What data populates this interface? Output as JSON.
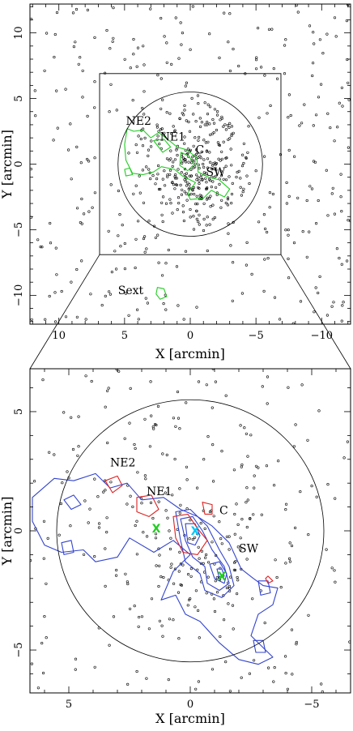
{
  "chart_data": [
    {
      "type": "scatter",
      "panel": "top",
      "xlabel": "X [arcmin]",
      "ylabel": "Y [arcmin]",
      "xlim": [
        12.2,
        -12.2
      ],
      "ylim": [
        -12.2,
        12.2
      ],
      "xticks": [
        10,
        5,
        0,
        -5,
        -10
      ],
      "yticks": [
        10,
        5,
        0,
        -5,
        -10
      ],
      "xtick_labels": [
        "10",
        "5",
        "0",
        "−5",
        "−10"
      ],
      "ytick_labels": [
        "10",
        "5",
        "0",
        "−5",
        "−10"
      ],
      "circle": {
        "cx": 0,
        "cy": 0,
        "r": 5.5
      },
      "square": {
        "x0": 6.9,
        "x1": -6.9,
        "y0": -6.9,
        "y1": 6.9
      },
      "annotations": [
        {
          "text": "NE2",
          "x": 4.9,
          "y": 3.0
        },
        {
          "text": "NE1",
          "x": 2.3,
          "y": 1.8
        },
        {
          "text": "C",
          "x": -0.4,
          "y": 0.8
        },
        {
          "text": "SW",
          "x": -1.2,
          "y": -0.9
        },
        {
          "text": "Sext",
          "x": 5.5,
          "y": -9.9
        }
      ],
      "contours": [
        {
          "color": "#22cc22",
          "points": [
            [
              4.8,
              2.7
            ],
            [
              4.3,
              2.5
            ],
            [
              3.6,
              2.6
            ],
            [
              3.0,
              2.0
            ],
            [
              2.4,
              2.4
            ],
            [
              1.6,
              1.8
            ],
            [
              1.0,
              1.3
            ],
            [
              0.3,
              1.1
            ],
            [
              -0.5,
              0.5
            ],
            [
              -0.6,
              -0.6
            ],
            [
              -1.4,
              -1.0
            ],
            [
              -2.2,
              -1.2
            ],
            [
              -3.0,
              -1.9
            ],
            [
              -2.6,
              -2.5
            ],
            [
              -1.6,
              -2.0
            ],
            [
              -1.0,
              -2.6
            ],
            [
              0.0,
              -2.7
            ],
            [
              0.2,
              -2.2
            ],
            [
              -0.4,
              -1.4
            ],
            [
              0.6,
              -0.9
            ],
            [
              1.2,
              -0.4
            ],
            [
              2.2,
              -0.2
            ],
            [
              2.8,
              -0.6
            ],
            [
              3.6,
              -0.8
            ],
            [
              4.4,
              -0.7
            ],
            [
              4.9,
              0.3
            ],
            [
              5.0,
              1.5
            ],
            [
              4.8,
              2.7
            ]
          ]
        },
        {
          "color": "#22cc22",
          "points": [
            [
              2.8,
              1.8
            ],
            [
              2.0,
              1.9
            ],
            [
              1.5,
              1.3
            ],
            [
              2.1,
              0.9
            ],
            [
              2.8,
              1.8
            ]
          ]
        },
        {
          "color": "#22cc22",
          "points": [
            [
              5.0,
              -0.4
            ],
            [
              4.6,
              -0.3
            ],
            [
              4.4,
              -0.8
            ],
            [
              4.9,
              -0.9
            ],
            [
              5.0,
              -0.4
            ]
          ]
        },
        {
          "color": "#22cc22",
          "points": [
            [
              0.7,
              0.9
            ],
            [
              0.1,
              0.6
            ],
            [
              -0.3,
              0.0
            ],
            [
              0.2,
              -0.5
            ],
            [
              0.8,
              -0.1
            ],
            [
              0.7,
              0.9
            ]
          ]
        },
        {
          "color": "#22cc22",
          "points": [
            [
              2.5,
              -9.4
            ],
            [
              2.0,
              -9.5
            ],
            [
              1.8,
              -10.1
            ],
            [
              2.3,
              -10.3
            ],
            [
              2.6,
              -9.9
            ],
            [
              2.5,
              -9.4
            ]
          ]
        }
      ],
      "seed": 7,
      "n_points": 620
    },
    {
      "type": "scatter",
      "panel": "bottom",
      "xlabel": "X [arcmin]",
      "ylabel": "Y [arcmin]",
      "xlim": [
        6.6,
        -6.6
      ],
      "ylim": [
        -6.8,
        6.8
      ],
      "xticks": [
        5,
        0,
        -5
      ],
      "yticks": [
        5,
        0,
        -5
      ],
      "xtick_labels": [
        "5",
        "0",
        "−5"
      ],
      "ytick_labels": [
        "5",
        "0",
        "−5"
      ],
      "circle": {
        "cx": 0,
        "cy": 0,
        "r": 5.5
      },
      "annotations": [
        {
          "text": "NE2",
          "x": 3.3,
          "y": 2.7
        },
        {
          "text": "NE1",
          "x": 1.8,
          "y": 1.5
        },
        {
          "text": "C",
          "x": -1.2,
          "y": 0.7
        },
        {
          "text": "SW",
          "x": -2.0,
          "y": -0.9
        }
      ],
      "markers": [
        {
          "text": "X",
          "x": 1.4,
          "y": 0.1,
          "color": "#22cc22"
        },
        {
          "text": "X",
          "x": -1.3,
          "y": -1.9,
          "color": "#22cc22"
        },
        {
          "text": "X",
          "x": -0.2,
          "y": 0.0,
          "color": "#00c8ff"
        }
      ],
      "contours": [
        {
          "color": "#3344cc",
          "points": [
            [
              6.5,
              1.4
            ],
            [
              5.6,
              2.2
            ],
            [
              4.8,
              2.1
            ],
            [
              3.9,
              2.4
            ],
            [
              3.3,
              1.8
            ],
            [
              2.6,
              2.0
            ],
            [
              2.0,
              1.3
            ],
            [
              1.1,
              1.4
            ],
            [
              0.4,
              0.9
            ],
            [
              -0.3,
              0.6
            ],
            [
              -0.9,
              0.2
            ],
            [
              -1.6,
              -0.5
            ],
            [
              -2.1,
              -1.6
            ],
            [
              -2.6,
              -2.0
            ],
            [
              -3.0,
              -2.3
            ],
            [
              -3.6,
              -2.4
            ],
            [
              -3.4,
              -3.1
            ],
            [
              -2.8,
              -3.5
            ],
            [
              -2.5,
              -4.4
            ],
            [
              -3.0,
              -4.9
            ],
            [
              -3.4,
              -5.3
            ],
            [
              -2.8,
              -5.6
            ],
            [
              -2.0,
              -5.4
            ],
            [
              -1.2,
              -4.7
            ],
            [
              -0.4,
              -3.8
            ],
            [
              0.2,
              -3.5
            ],
            [
              0.6,
              -2.7
            ],
            [
              1.2,
              -2.9
            ],
            [
              0.7,
              -1.7
            ],
            [
              0.0,
              -1.0
            ],
            [
              0.7,
              -0.4
            ],
            [
              1.5,
              -0.9
            ],
            [
              2.5,
              -0.3
            ],
            [
              3.0,
              -1.1
            ],
            [
              3.9,
              -1.3
            ],
            [
              4.4,
              -0.8
            ],
            [
              5.3,
              -0.9
            ],
            [
              6.0,
              -0.6
            ],
            [
              6.5,
              0.4
            ],
            [
              6.5,
              1.4
            ]
          ]
        },
        {
          "color": "#3344cc",
          "points": [
            [
              5.2,
              1.3
            ],
            [
              4.8,
              1.5
            ],
            [
              4.5,
              1.1
            ],
            [
              4.9,
              0.9
            ],
            [
              5.2,
              1.3
            ]
          ]
        },
        {
          "color": "#3344cc",
          "points": [
            [
              5.3,
              -0.5
            ],
            [
              4.9,
              -0.4
            ],
            [
              4.8,
              -0.9
            ],
            [
              5.2,
              -1.0
            ],
            [
              5.3,
              -0.5
            ]
          ]
        },
        {
          "color": "#3344cc",
          "points": [
            [
              0.6,
              0.8
            ],
            [
              0.0,
              0.9
            ],
            [
              -0.7,
              0.2
            ],
            [
              -1.2,
              -0.8
            ],
            [
              -1.6,
              -1.5
            ],
            [
              -1.8,
              -2.3
            ],
            [
              -1.3,
              -2.8
            ],
            [
              -0.6,
              -2.5
            ],
            [
              -0.4,
              -1.8
            ],
            [
              0.2,
              -1.3
            ],
            [
              0.4,
              -0.4
            ],
            [
              0.6,
              0.8
            ]
          ]
        },
        {
          "color": "#3344cc",
          "points": [
            [
              0.4,
              0.5
            ],
            [
              -0.1,
              0.6
            ],
            [
              -0.5,
              0.0
            ],
            [
              -0.9,
              -0.8
            ],
            [
              -1.4,
              -1.5
            ],
            [
              -1.6,
              -2.2
            ],
            [
              -1.2,
              -2.5
            ],
            [
              -0.7,
              -2.2
            ],
            [
              -0.6,
              -1.5
            ],
            [
              -0.1,
              -1.1
            ],
            [
              0.2,
              -0.4
            ],
            [
              0.4,
              0.5
            ]
          ]
        },
        {
          "color": "#3344cc",
          "points": [
            [
              0.2,
              0.3
            ],
            [
              -0.2,
              0.3
            ],
            [
              -0.4,
              -0.2
            ],
            [
              -0.2,
              -0.6
            ],
            [
              0.1,
              -0.5
            ],
            [
              0.2,
              0.3
            ]
          ]
        },
        {
          "color": "#3344cc",
          "points": [
            [
              -0.8,
              -1.4
            ],
            [
              -1.2,
              -1.3
            ],
            [
              -1.5,
              -1.8
            ],
            [
              -1.4,
              -2.2
            ],
            [
              -1.0,
              -2.0
            ],
            [
              -0.8,
              -1.4
            ]
          ]
        },
        {
          "color": "#3344cc",
          "points": [
            [
              -1.1,
              -1.6
            ],
            [
              -1.3,
              -1.6
            ],
            [
              -1.4,
              -1.9
            ],
            [
              -1.2,
              -2.0
            ],
            [
              -1.1,
              -1.6
            ]
          ]
        },
        {
          "color": "#3344cc",
          "points": [
            [
              -2.8,
              -2.1
            ],
            [
              -3.2,
              -2.1
            ],
            [
              -3.3,
              -2.6
            ],
            [
              -2.9,
              -2.7
            ],
            [
              -2.8,
              -2.1
            ]
          ]
        },
        {
          "color": "#3344cc",
          "points": [
            [
              -2.6,
              -4.6
            ],
            [
              -3.0,
              -4.6
            ],
            [
              -3.1,
              -5.1
            ],
            [
              -2.7,
              -5.1
            ],
            [
              -2.6,
              -4.6
            ]
          ]
        },
        {
          "color": "#dd2222",
          "points": [
            [
              3.5,
              2.1
            ],
            [
              3.0,
              2.3
            ],
            [
              2.8,
              1.9
            ],
            [
              3.2,
              1.6
            ],
            [
              3.5,
              2.1
            ]
          ]
        },
        {
          "color": "#dd2222",
          "points": [
            [
              2.2,
              1.4
            ],
            [
              1.6,
              1.5
            ],
            [
              1.3,
              0.9
            ],
            [
              1.7,
              0.6
            ],
            [
              2.2,
              0.8
            ],
            [
              2.2,
              1.4
            ]
          ]
        },
        {
          "color": "#dd2222",
          "points": [
            [
              -0.5,
              1.2
            ],
            [
              -0.9,
              1.1
            ],
            [
              -0.9,
              0.7
            ],
            [
              -0.6,
              0.7
            ],
            [
              -0.5,
              1.2
            ]
          ]
        },
        {
          "color": "#dd2222",
          "points": [
            [
              0.7,
              0.6
            ],
            [
              0.1,
              0.7
            ],
            [
              -0.3,
              0.1
            ],
            [
              -0.7,
              -0.4
            ],
            [
              -0.3,
              -1.0
            ],
            [
              0.3,
              -0.9
            ],
            [
              0.6,
              -0.3
            ],
            [
              0.7,
              0.6
            ]
          ]
        },
        {
          "color": "#dd2222",
          "points": [
            [
              -3.2,
              -1.9
            ],
            [
              -3.4,
              -2.1
            ],
            [
              -3.2,
              -2.2
            ],
            [
              -3.1,
              -2.0
            ],
            [
              -3.2,
              -1.9
            ]
          ]
        }
      ],
      "seed": 13,
      "n_points": 330
    }
  ]
}
